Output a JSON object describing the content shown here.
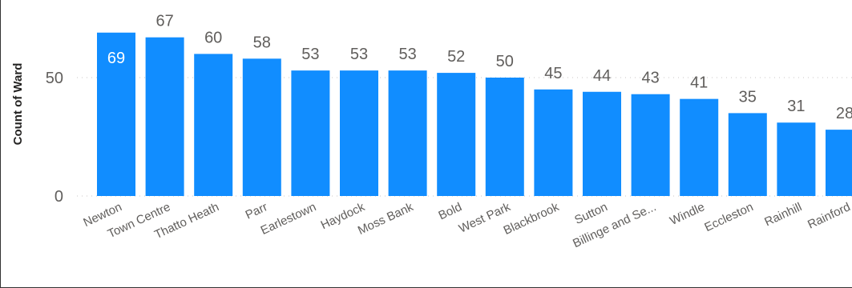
{
  "chart_data": {
    "type": "bar",
    "title": "",
    "xlabel": "",
    "ylabel": "Count of Ward",
    "categories": [
      "Newton",
      "Town Centre",
      "Thatto Heath",
      "Parr",
      "Earlestown",
      "Haydock",
      "Moss Bank",
      "Bold",
      "West Park",
      "Blackbrook",
      "Sutton",
      "Billinge and Se...",
      "Windle",
      "Eccleston",
      "Rainhill",
      "Rainford"
    ],
    "values": [
      69,
      67,
      60,
      58,
      53,
      53,
      53,
      52,
      50,
      45,
      44,
      43,
      41,
      35,
      31,
      28
    ],
    "ylim": [
      0,
      73
    ],
    "yticks": [
      0,
      50
    ],
    "grid": true,
    "legend": "none",
    "colors": {
      "bar": "#118dff",
      "label_inside": "#ffffff",
      "label_outside": "#605e5c"
    }
  }
}
